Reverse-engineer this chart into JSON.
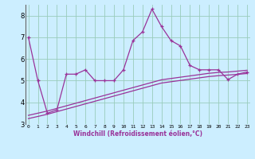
{
  "xlabel": "Windchill (Refroidissement éolien,°C)",
  "background_color": "#cceeff",
  "line_color": "#993399",
  "grid_color": "#99ccbb",
  "x_values": [
    0,
    1,
    2,
    3,
    4,
    5,
    6,
    7,
    8,
    9,
    10,
    11,
    12,
    13,
    14,
    15,
    16,
    17,
    18,
    19,
    20,
    21,
    22,
    23
  ],
  "line1_y": [
    7.0,
    5.0,
    3.5,
    3.65,
    5.3,
    5.3,
    5.5,
    5.0,
    5.0,
    5.0,
    5.5,
    6.85,
    7.25,
    8.3,
    7.5,
    6.85,
    6.6,
    5.7,
    5.5,
    5.5,
    5.5,
    5.05,
    5.3,
    5.4
  ],
  "line2_y": [
    3.4,
    3.5,
    3.6,
    3.72,
    3.84,
    3.96,
    4.08,
    4.2,
    4.32,
    4.44,
    4.56,
    4.68,
    4.8,
    4.92,
    5.04,
    5.1,
    5.16,
    5.22,
    5.28,
    5.34,
    5.38,
    5.4,
    5.44,
    5.48
  ],
  "line3_y": [
    3.25,
    3.35,
    3.45,
    3.57,
    3.69,
    3.81,
    3.93,
    4.05,
    4.17,
    4.29,
    4.41,
    4.53,
    4.65,
    4.77,
    4.89,
    4.95,
    5.01,
    5.07,
    5.13,
    5.19,
    5.23,
    5.26,
    5.29,
    5.33
  ],
  "ylim": [
    3.0,
    8.5
  ],
  "xlim": [
    -0.3,
    23.3
  ],
  "yticks": [
    3,
    4,
    5,
    6,
    7,
    8
  ],
  "xtick_labels": [
    "0",
    "1",
    "2",
    "3",
    "4",
    "5",
    "6",
    "7",
    "8",
    "9",
    "10",
    "11",
    "12",
    "13",
    "14",
    "15",
    "16",
    "17",
    "18",
    "19",
    "20",
    "21",
    "22",
    "23"
  ]
}
